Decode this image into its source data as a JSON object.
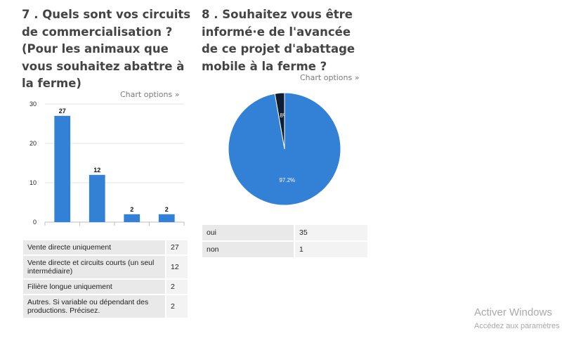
{
  "q7": {
    "title_lines": [
      "7 . Quels sont vos circuits",
      "de commercialisation ?",
      "(Pour les animaux que",
      "vous souhaitez abattre à",
      "la ferme)"
    ],
    "chart_options_label": "Chart options »",
    "table": [
      {
        "label": "Vente directe uniquement",
        "value": "27"
      },
      {
        "label": "Vente directe et circuits courts (un seul intermédiaire)",
        "value": "12"
      },
      {
        "label": "Filière longue uniquement",
        "value": "2"
      },
      {
        "label": "Autres. Si variable ou dépendant des productions. Précisez.",
        "value": "2"
      }
    ]
  },
  "q8": {
    "title_lines": [
      "8 . Souhaitez vous être",
      "informé·e de l'avancée",
      "de ce projet d'abattage",
      "mobile à la ferme ?"
    ],
    "chart_options_label": "Chart options »",
    "table": [
      {
        "label": "oui",
        "value": "35"
      },
      {
        "label": "non",
        "value": "1"
      }
    ]
  },
  "chart_data": [
    {
      "type": "bar",
      "categories": [
        "Vente directe uniquement",
        "Vente directe et circuits courts (un seul intermédiaire)",
        "Filière longue uniquement",
        "Autres. Si variable ou dépendant des productions. Précisez."
      ],
      "values": [
        27,
        12,
        2,
        2
      ],
      "data_labels": [
        "27",
        "12",
        "2",
        "2"
      ],
      "y_ticks": [
        0,
        10,
        20,
        30
      ],
      "y_tick_labels": [
        "0",
        "10",
        "20",
        "30"
      ],
      "ylim": [
        0,
        30
      ],
      "grid": true,
      "color": "#3281d6"
    },
    {
      "type": "pie",
      "categories": [
        "oui",
        "non"
      ],
      "values": [
        35,
        1
      ],
      "data_labels": [
        "97.2%",
        "2.8%"
      ],
      "colors": [
        "#3281d6",
        "#0f1d33"
      ]
    }
  ],
  "watermark": {
    "line1": "Activer Windows",
    "line2": "Accédez aux paramètres"
  }
}
